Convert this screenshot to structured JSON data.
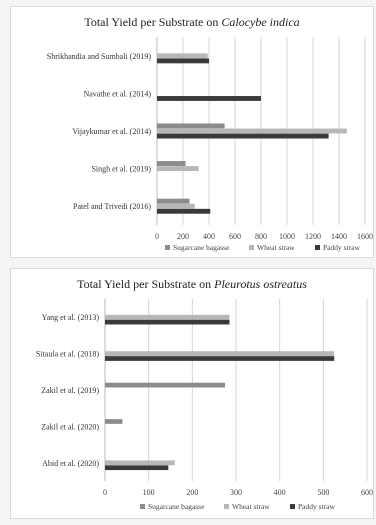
{
  "colors": {
    "Sugarcane bagasse": "#8c8c8c",
    "Wheat straw": "#b7b7b7",
    "Paddy straw": "#3a3a3a"
  },
  "chart_data": [
    {
      "type": "bar",
      "orientation": "horizontal",
      "title_prefix": "Total Yield per Substrate on ",
      "title_species": "Calocybe indica",
      "xlim": [
        0,
        1600
      ],
      "xticks": [
        0,
        200,
        400,
        600,
        800,
        1000,
        1200,
        1400,
        1600
      ],
      "grid": true,
      "legend_position": "bottom",
      "categories": [
        "Shrikhandia and Sumbali (2019)",
        "Navathe et al. (2014)",
        "Vijaykumar et al. (2014)",
        "Singh et al. (2019)",
        "Patel and Trivedi (2016)"
      ],
      "series": [
        {
          "name": "Sugarcane bagasse",
          "values": [
            null,
            null,
            520,
            220,
            250
          ]
        },
        {
          "name": "Wheat straw",
          "values": [
            390,
            null,
            1460,
            320,
            290
          ]
        },
        {
          "name": "Paddy straw",
          "values": [
            400,
            800,
            1320,
            null,
            410
          ]
        }
      ]
    },
    {
      "type": "bar",
      "orientation": "horizontal",
      "title_prefix": "Total Yield per Substrate on ",
      "title_species": "Pleurotus ostreatus",
      "xlim": [
        0,
        600
      ],
      "xticks": [
        0,
        100,
        200,
        300,
        400,
        500,
        600
      ],
      "grid": true,
      "legend_position": "bottom",
      "categories": [
        "Yang et al. (2013)",
        "Sitaula et al. (2018)",
        "Zakil et al. (2019)",
        "Zakil et al. (2020)",
        "Abid et al. (2020)"
      ],
      "series": [
        {
          "name": "Sugarcane bagasse",
          "values": [
            null,
            null,
            275,
            40,
            null
          ]
        },
        {
          "name": "Wheat straw",
          "values": [
            285,
            525,
            null,
            null,
            160
          ]
        },
        {
          "name": "Paddy straw",
          "values": [
            285,
            525,
            null,
            null,
            145
          ]
        }
      ]
    }
  ]
}
